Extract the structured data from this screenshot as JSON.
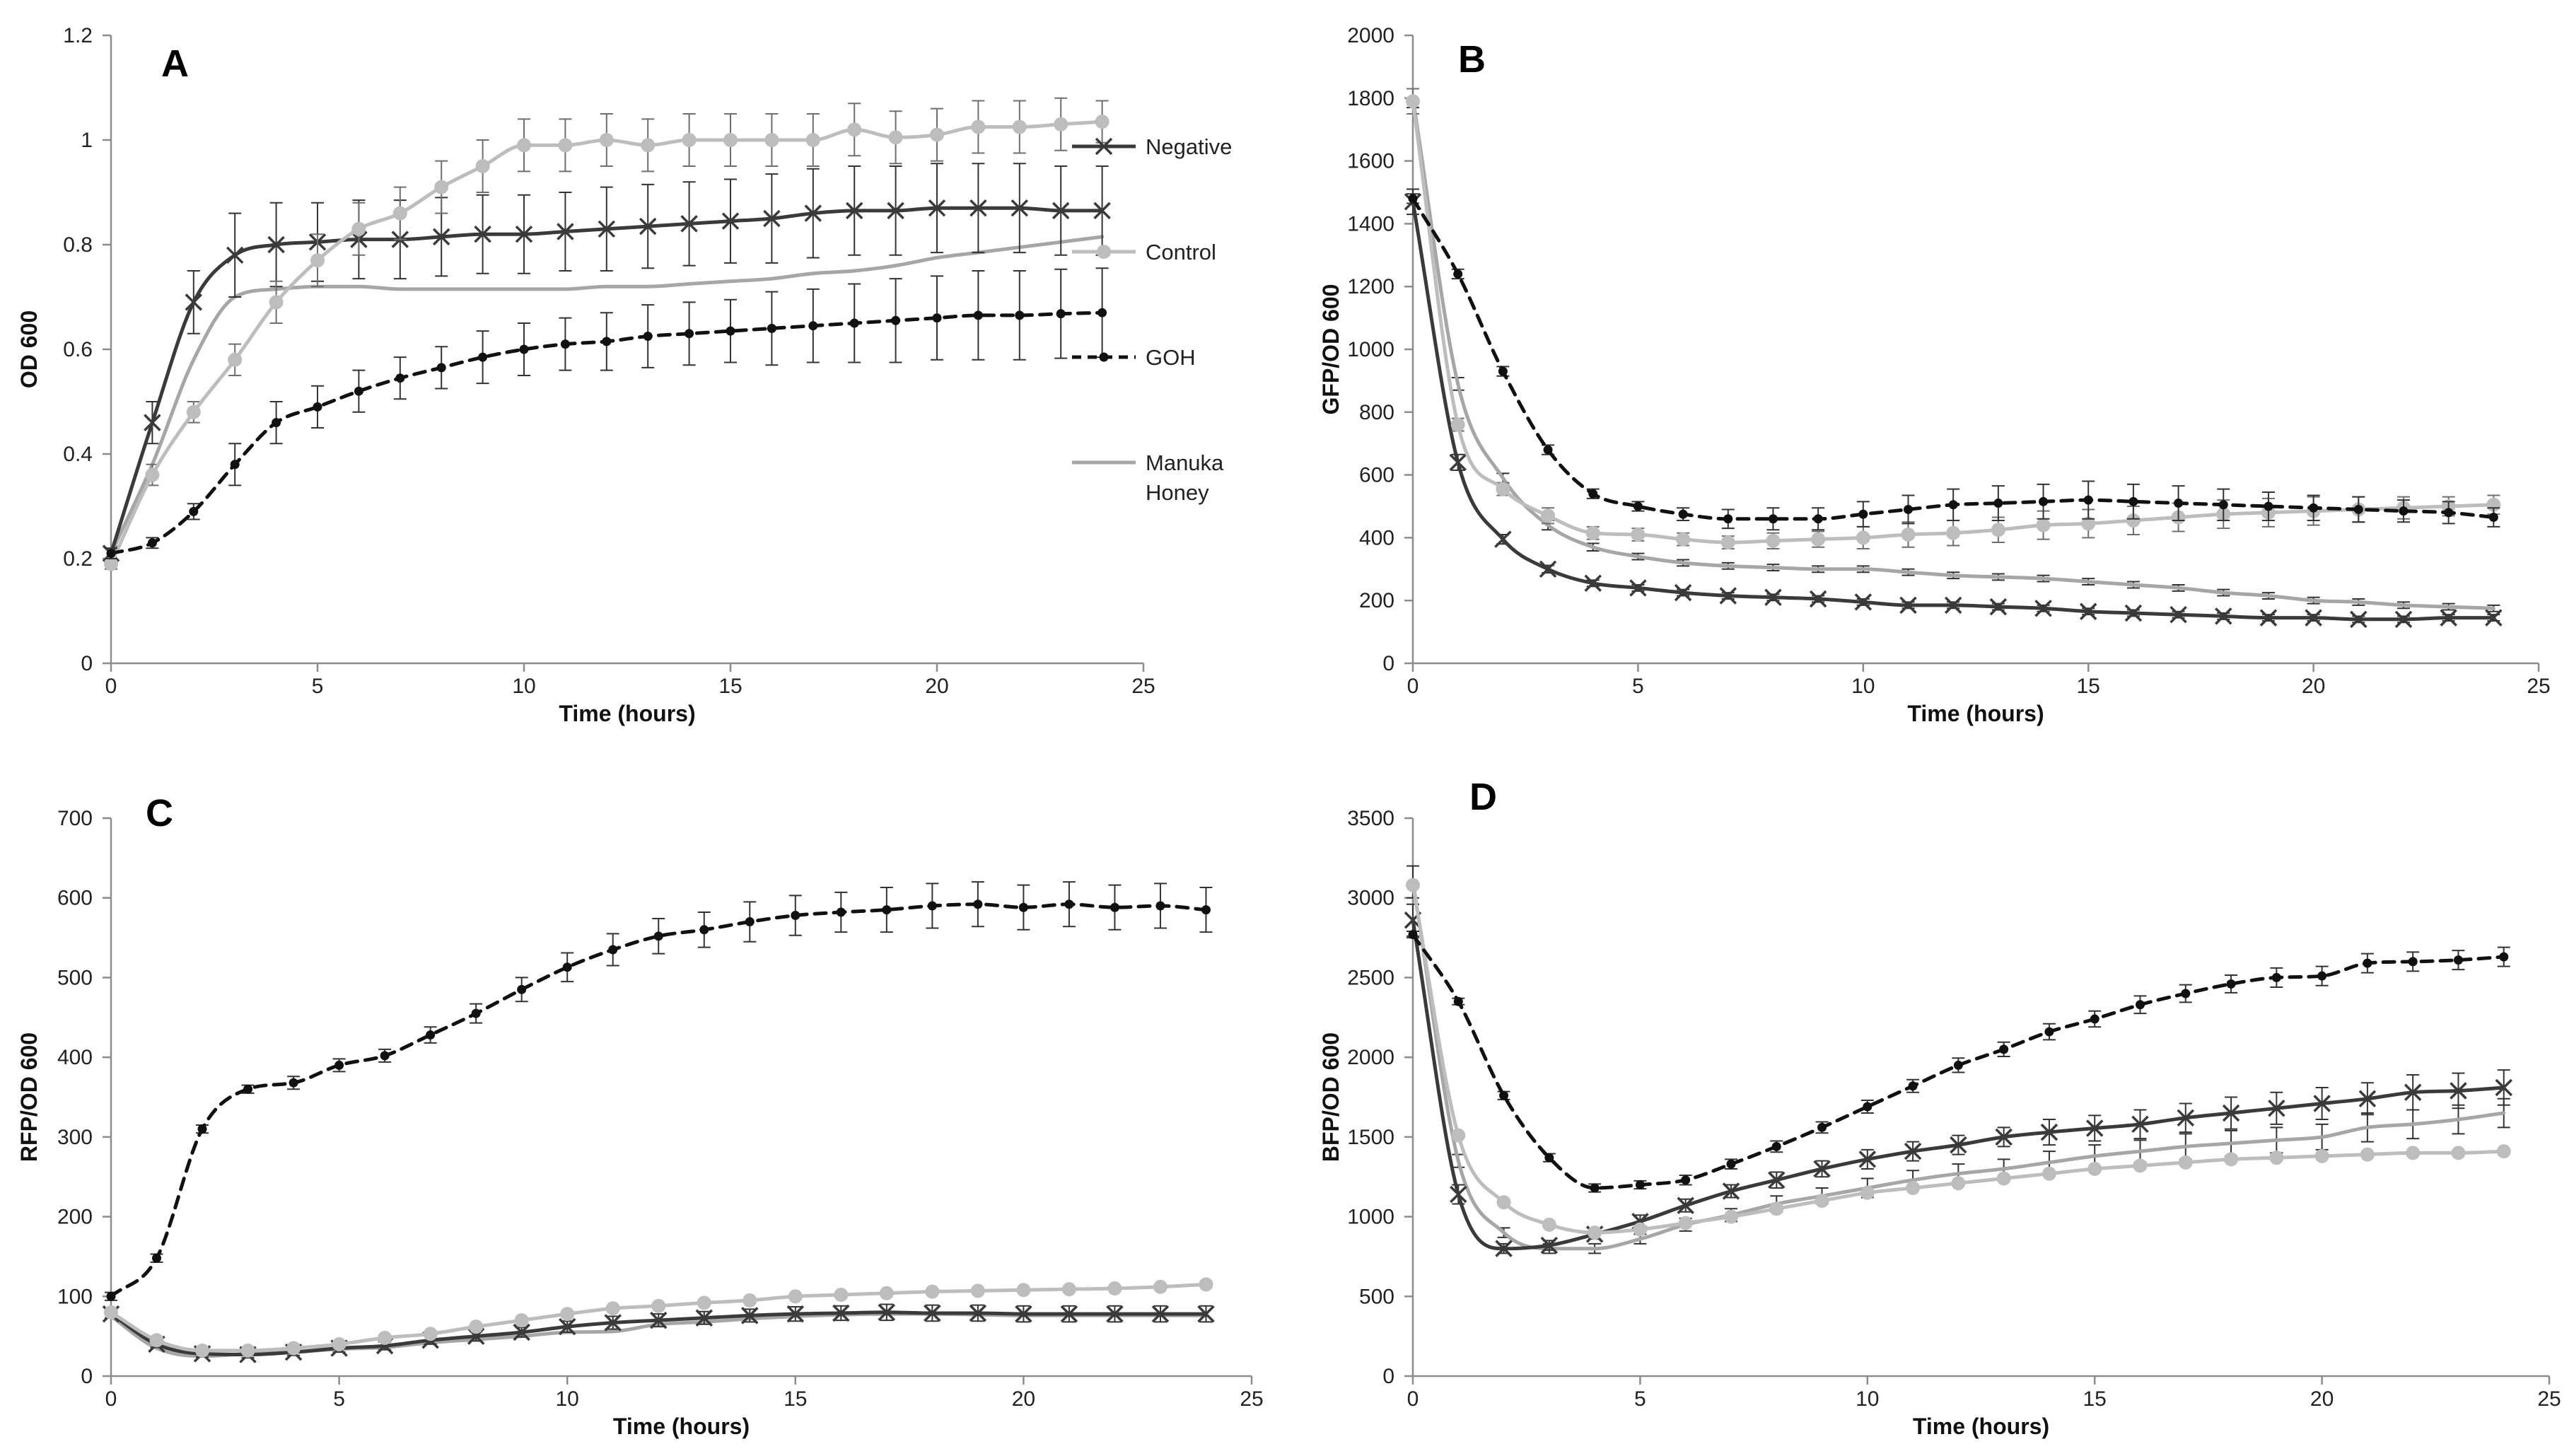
{
  "figure": {
    "legend": [
      {
        "key": "negative",
        "label": "Negative"
      },
      {
        "key": "control",
        "label": "Control"
      },
      {
        "key": "goh",
        "label": "GOH"
      },
      {
        "key": "manuka",
        "label_lines": [
          "Manuka",
          "Honey"
        ]
      }
    ],
    "colors": {
      "negative": "#3a3a3a",
      "control": "#bdbdbd",
      "goh": "#111111",
      "manuka": "#a6a6a6",
      "axis": "#8c8c8c"
    }
  },
  "chart_data": [
    {
      "type": "line",
      "panel": "A",
      "xlabel": "Time (hours)",
      "ylabel": "OD 600",
      "xlim": [
        0,
        25
      ],
      "ylim": [
        0,
        1.2
      ],
      "xticks": [
        0,
        5,
        10,
        15,
        20,
        25
      ],
      "yticks": [
        0,
        0.2,
        0.4,
        0.6,
        0.8,
        1,
        1.2
      ],
      "ytick_labels": [
        "0",
        "0.2",
        "0.4",
        "0.6",
        "0.8",
        "1",
        "1.2"
      ],
      "x": [
        0,
        1,
        2,
        3,
        4,
        5,
        6,
        7,
        8,
        9,
        10,
        11,
        12,
        13,
        14,
        15,
        16,
        17,
        18,
        19,
        20,
        21,
        22,
        23,
        24
      ],
      "series": [
        {
          "name": "Negative",
          "key": "negative",
          "values": [
            0.21,
            0.46,
            0.69,
            0.78,
            0.8,
            0.805,
            0.81,
            0.81,
            0.815,
            0.82,
            0.82,
            0.825,
            0.83,
            0.835,
            0.84,
            0.845,
            0.85,
            0.86,
            0.865,
            0.865,
            0.87,
            0.87,
            0.87,
            0.865,
            0.865
          ],
          "errors": [
            0.01,
            0.04,
            0.06,
            0.08,
            0.08,
            0.075,
            0.075,
            0.075,
            0.075,
            0.075,
            0.075,
            0.075,
            0.08,
            0.08,
            0.08,
            0.08,
            0.085,
            0.085,
            0.085,
            0.085,
            0.085,
            0.085,
            0.085,
            0.085,
            0.085
          ]
        },
        {
          "name": "Control",
          "key": "control",
          "values": [
            0.19,
            0.36,
            0.48,
            0.58,
            0.69,
            0.77,
            0.83,
            0.86,
            0.91,
            0.95,
            0.99,
            0.99,
            1.0,
            0.99,
            1.0,
            1.0,
            1.0,
            1.0,
            1.02,
            1.005,
            1.01,
            1.025,
            1.025,
            1.03,
            1.035
          ],
          "errors": [
            0.01,
            0.02,
            0.02,
            0.03,
            0.04,
            0.05,
            0.05,
            0.05,
            0.05,
            0.05,
            0.05,
            0.05,
            0.05,
            0.05,
            0.05,
            0.05,
            0.05,
            0.05,
            0.05,
            0.05,
            0.05,
            0.05,
            0.05,
            0.05,
            0.04
          ]
        },
        {
          "name": "GOH",
          "key": "goh",
          "values": [
            0.21,
            0.23,
            0.29,
            0.38,
            0.46,
            0.49,
            0.52,
            0.545,
            0.565,
            0.585,
            0.6,
            0.61,
            0.615,
            0.625,
            0.63,
            0.635,
            0.64,
            0.645,
            0.65,
            0.655,
            0.66,
            0.665,
            0.665,
            0.668,
            0.67
          ],
          "errors": [
            0.01,
            0.01,
            0.015,
            0.04,
            0.04,
            0.04,
            0.04,
            0.04,
            0.04,
            0.05,
            0.05,
            0.05,
            0.055,
            0.06,
            0.06,
            0.06,
            0.07,
            0.07,
            0.075,
            0.08,
            0.08,
            0.085,
            0.085,
            0.085,
            0.085
          ]
        },
        {
          "name": "Manuka Honey",
          "key": "manuka",
          "values": [
            0.21,
            0.38,
            0.58,
            0.7,
            0.715,
            0.72,
            0.72,
            0.715,
            0.715,
            0.715,
            0.715,
            0.715,
            0.72,
            0.72,
            0.725,
            0.73,
            0.735,
            0.745,
            0.75,
            0.76,
            0.775,
            0.785,
            0.795,
            0.805,
            0.815
          ],
          "errors": [
            0,
            0,
            0,
            0,
            0,
            0,
            0,
            0,
            0,
            0,
            0,
            0,
            0,
            0,
            0,
            0,
            0,
            0,
            0,
            0,
            0,
            0,
            0,
            0,
            0
          ]
        }
      ]
    },
    {
      "type": "line",
      "panel": "B",
      "xlabel": "Time (hours)",
      "ylabel": "GFP/OD 600",
      "xlim": [
        0,
        25
      ],
      "ylim": [
        0,
        2000
      ],
      "xticks": [
        0,
        5,
        10,
        15,
        20,
        25
      ],
      "yticks": [
        0,
        200,
        400,
        600,
        800,
        1000,
        1200,
        1400,
        1600,
        1800,
        2000
      ],
      "ytick_labels": [
        "0",
        "200",
        "400",
        "600",
        "800",
        "1000",
        "1200",
        "1400",
        "1600",
        "1800",
        "2000"
      ],
      "x": [
        0,
        1,
        2,
        3,
        4,
        5,
        6,
        7,
        8,
        9,
        10,
        11,
        12,
        13,
        14,
        15,
        16,
        17,
        18,
        19,
        20,
        21,
        22,
        23,
        24
      ],
      "series": [
        {
          "name": "Negative",
          "key": "negative",
          "values": [
            1470,
            640,
            395,
            300,
            255,
            240,
            225,
            215,
            210,
            205,
            195,
            185,
            185,
            180,
            175,
            165,
            160,
            155,
            150,
            145,
            145,
            140,
            140,
            145,
            145
          ],
          "errors": [
            40,
            25,
            15,
            12,
            10,
            10,
            10,
            10,
            10,
            10,
            10,
            10,
            10,
            10,
            10,
            10,
            10,
            10,
            10,
            10,
            10,
            10,
            10,
            10,
            10
          ]
        },
        {
          "name": "Control",
          "key": "control",
          "values": [
            1790,
            760,
            555,
            470,
            415,
            410,
            395,
            385,
            390,
            395,
            400,
            410,
            415,
            425,
            440,
            445,
            455,
            465,
            475,
            480,
            485,
            490,
            495,
            500,
            505
          ],
          "errors": [
            40,
            20,
            20,
            25,
            20,
            20,
            20,
            20,
            25,
            25,
            35,
            40,
            40,
            40,
            45,
            45,
            45,
            45,
            45,
            45,
            45,
            40,
            35,
            30,
            30
          ]
        },
        {
          "name": "GOH",
          "key": "goh",
          "values": [
            1480,
            1240,
            930,
            680,
            540,
            500,
            475,
            460,
            460,
            460,
            475,
            490,
            505,
            510,
            515,
            520,
            515,
            510,
            505,
            500,
            495,
            490,
            485,
            480,
            465
          ],
          "errors": [
            15,
            15,
            15,
            15,
            15,
            15,
            20,
            30,
            35,
            35,
            40,
            45,
            50,
            55,
            55,
            60,
            55,
            55,
            50,
            45,
            40,
            40,
            35,
            35,
            30
          ]
        },
        {
          "name": "Manuka Honey",
          "key": "manuka",
          "values": [
            1800,
            890,
            590,
            440,
            370,
            340,
            320,
            310,
            305,
            300,
            300,
            290,
            280,
            275,
            270,
            260,
            250,
            240,
            225,
            215,
            200,
            195,
            185,
            180,
            175
          ],
          "errors": [
            30,
            20,
            15,
            15,
            12,
            10,
            10,
            10,
            10,
            10,
            10,
            10,
            10,
            10,
            10,
            10,
            10,
            10,
            10,
            10,
            10,
            10,
            10,
            10,
            10
          ]
        }
      ]
    },
    {
      "type": "line",
      "panel": "C",
      "xlabel": "Time (hours)",
      "ylabel": "RFP/OD 600",
      "xlim": [
        0,
        25
      ],
      "ylim": [
        0,
        700
      ],
      "xticks": [
        0,
        5,
        10,
        15,
        20,
        25
      ],
      "yticks": [
        0,
        100,
        200,
        300,
        400,
        500,
        600,
        700
      ],
      "ytick_labels": [
        "0",
        "100",
        "200",
        "300",
        "400",
        "500",
        "600",
        "700"
      ],
      "x": [
        0,
        1,
        2,
        3,
        4,
        5,
        6,
        7,
        8,
        9,
        10,
        11,
        12,
        13,
        14,
        15,
        16,
        17,
        18,
        19,
        20,
        21,
        22,
        23,
        24
      ],
      "series": [
        {
          "name": "Negative",
          "key": "negative",
          "values": [
            78,
            40,
            28,
            27,
            30,
            35,
            38,
            45,
            50,
            55,
            62,
            67,
            70,
            73,
            76,
            78,
            79,
            80,
            79,
            79,
            78,
            78,
            78,
            78,
            78
          ],
          "errors": [
            5,
            4,
            4,
            4,
            4,
            5,
            5,
            5,
            6,
            6,
            7,
            8,
            8,
            8,
            8,
            9,
            9,
            10,
            10,
            10,
            10,
            10,
            10,
            10,
            10
          ]
        },
        {
          "name": "Control",
          "key": "control",
          "values": [
            80,
            45,
            32,
            32,
            35,
            40,
            48,
            53,
            62,
            70,
            78,
            85,
            88,
            92,
            95,
            100,
            102,
            104,
            106,
            107,
            108,
            109,
            110,
            112,
            115
          ],
          "errors": [
            3,
            3,
            3,
            3,
            3,
            3,
            3,
            3,
            3,
            3,
            3,
            3,
            3,
            3,
            3,
            3,
            3,
            3,
            3,
            3,
            3,
            3,
            3,
            3,
            3
          ]
        },
        {
          "name": "GOH",
          "key": "goh",
          "values": [
            100,
            148,
            310,
            360,
            368,
            390,
            402,
            428,
            455,
            485,
            513,
            535,
            552,
            560,
            570,
            578,
            582,
            585,
            590,
            592,
            588,
            592,
            588,
            590,
            585
          ],
          "errors": [
            5,
            5,
            5,
            5,
            8,
            8,
            8,
            10,
            12,
            15,
            18,
            20,
            22,
            22,
            25,
            25,
            25,
            28,
            28,
            28,
            28,
            28,
            28,
            28,
            28
          ]
        },
        {
          "name": "Manuka Honey",
          "key": "manuka",
          "values": [
            75,
            35,
            25,
            28,
            30,
            34,
            36,
            42,
            46,
            50,
            55,
            56,
            65,
            68,
            72,
            75,
            77,
            78,
            78,
            77,
            76,
            76,
            76,
            76,
            76
          ],
          "errors": [
            0,
            0,
            0,
            0,
            0,
            0,
            0,
            0,
            0,
            0,
            0,
            0,
            0,
            0,
            0,
            0,
            0,
            0,
            0,
            0,
            0,
            0,
            0,
            0,
            0
          ]
        }
      ]
    },
    {
      "type": "line",
      "panel": "D",
      "xlabel": "Time (hours)",
      "ylabel": "BFP/OD 600",
      "xlim": [
        0,
        25
      ],
      "ylim": [
        0,
        3500
      ],
      "xticks": [
        0,
        5,
        10,
        15,
        20,
        25
      ],
      "yticks": [
        0,
        500,
        1000,
        1500,
        2000,
        2500,
        3000,
        3500
      ],
      "ytick_labels": [
        "0",
        "500",
        "1000",
        "1500",
        "2000",
        "2500",
        "3000",
        "3500"
      ],
      "x": [
        0,
        1,
        2,
        3,
        4,
        5,
        6,
        7,
        8,
        9,
        10,
        11,
        12,
        13,
        14,
        15,
        16,
        17,
        18,
        19,
        20,
        21,
        22,
        23,
        24
      ],
      "series": [
        {
          "name": "Negative",
          "key": "negative",
          "values": [
            2860,
            1140,
            800,
            820,
            890,
            970,
            1070,
            1160,
            1230,
            1300,
            1360,
            1410,
            1450,
            1500,
            1530,
            1555,
            1580,
            1620,
            1650,
            1680,
            1710,
            1740,
            1780,
            1790,
            1810
          ],
          "errors": [
            100,
            60,
            30,
            30,
            30,
            40,
            40,
            40,
            50,
            50,
            60,
            60,
            60,
            60,
            80,
            80,
            90,
            90,
            100,
            100,
            100,
            100,
            110,
            110,
            110
          ]
        },
        {
          "name": "Control",
          "key": "control",
          "values": [
            3080,
            1510,
            1090,
            950,
            900,
            920,
            960,
            1000,
            1050,
            1100,
            1150,
            1180,
            1210,
            1240,
            1270,
            1300,
            1320,
            1340,
            1360,
            1370,
            1380,
            1390,
            1400,
            1400,
            1410
          ]
        },
        {
          "name": "GOH",
          "key": "goh",
          "values": [
            2770,
            2350,
            1760,
            1370,
            1180,
            1200,
            1230,
            1330,
            1440,
            1560,
            1690,
            1820,
            1950,
            2050,
            2160,
            2240,
            2330,
            2400,
            2460,
            2500,
            2510,
            2590,
            2600,
            2610,
            2630
          ],
          "errors": [
            20,
            20,
            25,
            25,
            25,
            25,
            30,
            30,
            35,
            35,
            40,
            40,
            45,
            45,
            50,
            50,
            55,
            55,
            55,
            60,
            60,
            60,
            60,
            60,
            60
          ]
        },
        {
          "name": "Manuka Honey",
          "key": "manuka",
          "values": [
            3100,
            1350,
            900,
            800,
            800,
            860,
            950,
            1010,
            1080,
            1130,
            1180,
            1230,
            1270,
            1300,
            1340,
            1380,
            1410,
            1440,
            1460,
            1480,
            1500,
            1560,
            1580,
            1610,
            1650
          ],
          "errors": [
            100,
            40,
            30,
            30,
            30,
            30,
            40,
            40,
            50,
            50,
            60,
            60,
            60,
            60,
            70,
            70,
            70,
            80,
            80,
            80,
            80,
            90,
            90,
            90,
            90
          ]
        }
      ]
    }
  ]
}
